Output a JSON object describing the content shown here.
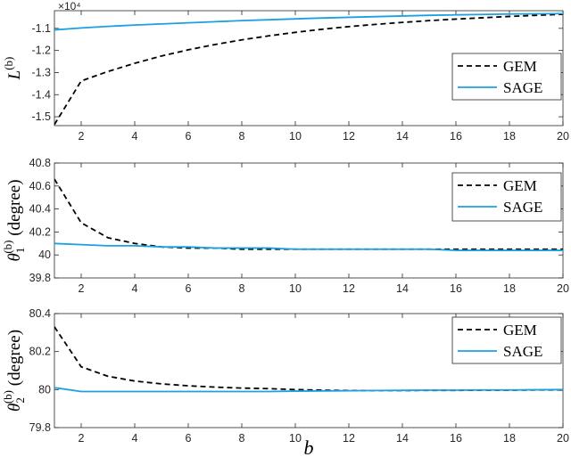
{
  "chart_data": [
    {
      "type": "line",
      "ylabel_main": "L",
      "ylabel_sup": "(b)",
      "ylabel_paren": "",
      "exponent_label": "×10⁴",
      "x": [
        1,
        2,
        3,
        4,
        5,
        6,
        7,
        8,
        9,
        10,
        11,
        12,
        13,
        14,
        15,
        16,
        17,
        18,
        19,
        20
      ],
      "xlim": [
        1,
        20
      ],
      "xticks": [
        "2",
        "4",
        "6",
        "8",
        "10",
        "12",
        "14",
        "16",
        "18",
        "20"
      ],
      "ylim": [
        -1.54,
        -1.02
      ],
      "yticks": [
        -1.5,
        -1.4,
        -1.3,
        -1.2,
        -1.1
      ],
      "ytick_labels": [
        "-1.5",
        "-1.4",
        "-1.3",
        "-1.2",
        "-1.1"
      ],
      "legend_position": "right",
      "series": [
        {
          "name": "GEM",
          "style": "dashed",
          "color": "#000000",
          "values": [
            -1.535,
            -1.338,
            -1.295,
            -1.258,
            -1.225,
            -1.197,
            -1.173,
            -1.152,
            -1.134,
            -1.118,
            -1.104,
            -1.092,
            -1.082,
            -1.073,
            -1.065,
            -1.058,
            -1.052,
            -1.046,
            -1.041,
            -1.036
          ]
        },
        {
          "name": "SAGE",
          "style": "solid",
          "color": "#1ba1e2",
          "values": [
            -1.107,
            -1.098,
            -1.091,
            -1.085,
            -1.08,
            -1.075,
            -1.07,
            -1.065,
            -1.061,
            -1.057,
            -1.053,
            -1.05,
            -1.047,
            -1.044,
            -1.041,
            -1.039,
            -1.037,
            -1.035,
            -1.034,
            -1.033
          ]
        }
      ]
    },
    {
      "type": "line",
      "ylabel_main": "θ",
      "ylabel_sup": "(b)",
      "ylabel_sub": "1",
      "ylabel_paren": "(degree)",
      "x": [
        1,
        2,
        3,
        4,
        5,
        6,
        7,
        8,
        9,
        10,
        11,
        12,
        13,
        14,
        15,
        16,
        17,
        18,
        19,
        20
      ],
      "xlim": [
        1,
        20
      ],
      "xticks": [
        "2",
        "4",
        "6",
        "8",
        "10",
        "12",
        "14",
        "16",
        "18",
        "20"
      ],
      "ylim": [
        39.8,
        40.8
      ],
      "yticks": [
        39.8,
        40,
        40.2,
        40.4,
        40.6,
        40.8
      ],
      "ytick_labels": [
        "39.8",
        "40",
        "40.2",
        "40.4",
        "40.6",
        "40.8"
      ],
      "legend_position": "top-right",
      "series": [
        {
          "name": "GEM",
          "style": "dashed",
          "color": "#000000",
          "values": [
            40.66,
            40.28,
            40.15,
            40.1,
            40.07,
            40.06,
            40.06,
            40.05,
            40.05,
            40.05,
            40.05,
            40.05,
            40.05,
            40.05,
            40.05,
            40.05,
            40.05,
            40.05,
            40.05,
            40.05
          ]
        },
        {
          "name": "SAGE",
          "style": "solid",
          "color": "#1ba1e2",
          "values": [
            40.1,
            40.09,
            40.08,
            40.08,
            40.07,
            40.07,
            40.06,
            40.06,
            40.06,
            40.05,
            40.05,
            40.05,
            40.05,
            40.05,
            40.05,
            40.04,
            40.04,
            40.04,
            40.04,
            40.04
          ]
        }
      ]
    },
    {
      "type": "line",
      "ylabel_main": "θ",
      "ylabel_sup": "(b)",
      "ylabel_sub": "2",
      "ylabel_paren": "(degree)",
      "xlabel": "b",
      "x": [
        1,
        2,
        3,
        4,
        5,
        6,
        7,
        8,
        9,
        10,
        11,
        12,
        13,
        14,
        15,
        16,
        17,
        18,
        19,
        20
      ],
      "xlim": [
        1,
        20
      ],
      "xticks": [
        "2",
        "4",
        "6",
        "8",
        "10",
        "12",
        "14",
        "16",
        "18",
        "20"
      ],
      "ylim": [
        79.8,
        80.4
      ],
      "yticks": [
        79.8,
        80,
        80.2,
        80.4
      ],
      "ytick_labels": [
        "79.8",
        "80",
        "80.2",
        "80.4"
      ],
      "legend_position": "top-right",
      "series": [
        {
          "name": "GEM",
          "style": "dashed",
          "color": "#000000",
          "values": [
            80.33,
            80.12,
            80.07,
            80.045,
            80.03,
            80.02,
            80.013,
            80.008,
            80.005,
            80.0,
            79.997,
            79.995,
            79.995,
            79.995,
            79.996,
            79.996,
            79.997,
            79.997,
            79.998,
            79.998
          ]
        },
        {
          "name": "SAGE",
          "style": "solid",
          "color": "#1ba1e2",
          "values": [
            80.01,
            79.99,
            79.99,
            79.99,
            79.99,
            79.99,
            79.99,
            79.99,
            79.99,
            79.992,
            79.993,
            79.994,
            79.995,
            79.996,
            79.997,
            79.997,
            79.998,
            79.998,
            79.999,
            80.0
          ]
        }
      ]
    }
  ]
}
